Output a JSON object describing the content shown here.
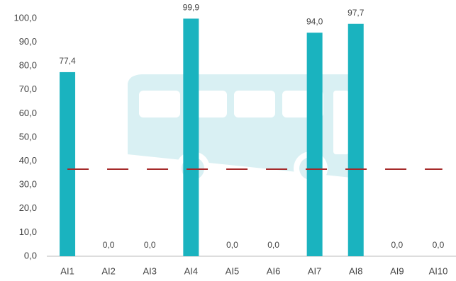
{
  "chart_data": {
    "type": "bar",
    "categories": [
      "AI1",
      "AI2",
      "AI3",
      "AI4",
      "AI5",
      "AI6",
      "AI7",
      "AI8",
      "AI9",
      "AI10"
    ],
    "values": [
      77.4,
      0,
      0,
      99.9,
      0,
      0,
      94.0,
      97.7,
      0,
      0
    ],
    "value_labels": [
      "77,4",
      "0,0",
      "0,0",
      "99,9",
      "0,0",
      "0,0",
      "94,0",
      "97,7",
      "0,0",
      "0,0"
    ],
    "color": "#1ab3bf",
    "reference_line": 36.6,
    "reference_color": "#a52a2a",
    "ylim": [
      0,
      100
    ],
    "yticks": [
      {
        "value": 0,
        "label": "0,0"
      },
      {
        "value": 10,
        "label": "10,0"
      },
      {
        "value": 20,
        "label": "20,0"
      },
      {
        "value": 30,
        "label": "30,0"
      },
      {
        "value": 40,
        "label": "40,0"
      },
      {
        "value": 50,
        "label": "50,0"
      },
      {
        "value": 60,
        "label": "60,0"
      },
      {
        "value": 70,
        "label": "70,0"
      },
      {
        "value": 80,
        "label": "80,0"
      },
      {
        "value": 90,
        "label": "90,0"
      },
      {
        "value": 100,
        "label": "100,0"
      }
    ],
    "grid": false
  }
}
